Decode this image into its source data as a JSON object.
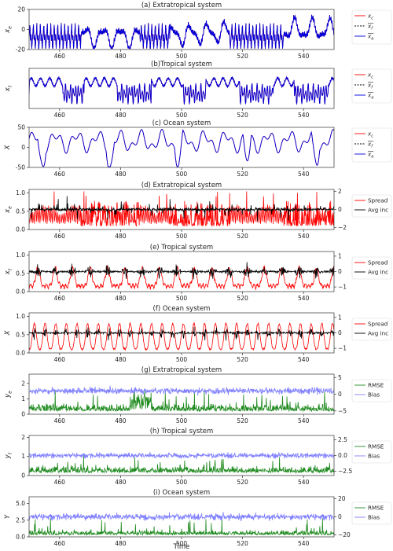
{
  "xlabel": "Time",
  "xlim": [
    450,
    550
  ],
  "xticks": [
    460,
    480,
    500,
    520,
    540
  ],
  "colors": {
    "red": "#ff0000",
    "blue": "#0000dd",
    "black": "#000000",
    "green": "#1f8a1f",
    "lightblue": "#7f7fff",
    "axis_blue": "#1f5fbf"
  },
  "chart_data": [
    {
      "type": "line",
      "title": "(a) Extratropical system",
      "ylabel_base": "x",
      "ylabel_sub": "e",
      "ylim": [
        -20,
        20
      ],
      "yticks": [
        -20,
        0,
        20
      ],
      "series": [
        {
          "name_base": "x",
          "name_sub": "c",
          "style": "solid",
          "color": "#ff0000"
        },
        {
          "name_base": "x",
          "name_sub": "f",
          "style": "dashed",
          "color": "#000000",
          "bar": true
        },
        {
          "name_base": "x",
          "name_sub": "a",
          "style": "solid",
          "color": "#0000dd",
          "bar": true
        }
      ],
      "gen": {
        "kind": "extra",
        "amp": 14,
        "bias": 0
      }
    },
    {
      "type": "line",
      "title": "(b)Tropical system",
      "ylabel_base": "x",
      "ylabel_sub": "t",
      "ylim": [
        -15,
        15
      ],
      "yticks": [],
      "series": [
        {
          "name_base": "x",
          "name_sub": "c",
          "style": "solid",
          "color": "#ff0000"
        },
        {
          "name_base": "x",
          "name_sub": "f",
          "style": "dashed",
          "color": "#000000",
          "bar": true
        },
        {
          "name_base": "x",
          "name_sub": "a",
          "style": "solid",
          "color": "#0000dd",
          "bar": true
        }
      ],
      "gen": {
        "kind": "tropic",
        "amp": 9,
        "bias": 0
      }
    },
    {
      "type": "line",
      "title": "(c) Ocean system",
      "ylabel_base": "X",
      "ylabel_sub": "",
      "ylim": [
        -50,
        50
      ],
      "yticks": [
        -50,
        0,
        50
      ],
      "series": [
        {
          "name_base": "x",
          "name_sub": "c",
          "style": "solid",
          "color": "#ff0000"
        },
        {
          "name_base": "x",
          "name_sub": "f",
          "style": "dashed",
          "color": "#000000",
          "bar": true
        },
        {
          "name_base": "x",
          "name_sub": "a",
          "style": "solid",
          "color": "#0000dd",
          "bar": true
        }
      ],
      "gen": {
        "kind": "ocean",
        "amp": 30,
        "bias": 8
      }
    },
    {
      "type": "line",
      "title": "(d) Extratropical system",
      "ylabel_base": "x",
      "ylabel_sub": "e",
      "ylim": [
        0,
        1.1
      ],
      "yticks": [
        0.0,
        0.5,
        1.0
      ],
      "tick_color": "#ff0000",
      "y2lim": [
        -2.2,
        2.2
      ],
      "y2ticks": [
        -2,
        0,
        2
      ],
      "series": [
        {
          "name": "Spread",
          "color": "#ff0000",
          "style": "solid"
        },
        {
          "name": "Avg inc",
          "color": "#000000",
          "style": "solid",
          "axis": 2
        }
      ],
      "gen": {
        "kind": "spread_extra"
      }
    },
    {
      "type": "line",
      "title": "(e) Tropical system",
      "ylabel_base": "x",
      "ylabel_sub": "t",
      "ylim": [
        0,
        1.1
      ],
      "yticks": [
        0.0,
        0.5,
        1.0
      ],
      "tick_color": "#ff0000",
      "y2lim": [
        -1.3,
        1.3
      ],
      "y2ticks": [
        -1,
        0,
        1
      ],
      "series": [
        {
          "name": "Spread",
          "color": "#ff0000",
          "style": "solid"
        },
        {
          "name": "Avg inc",
          "color": "#000000",
          "style": "solid",
          "axis": 2
        }
      ],
      "gen": {
        "kind": "spread_trop"
      }
    },
    {
      "type": "line",
      "title": "(f) Ocean system",
      "ylabel_base": "X",
      "ylabel_sub": "",
      "ylim": [
        0,
        1.1
      ],
      "yticks": [
        0.0,
        0.5,
        1.0
      ],
      "tick_color": "#ff0000",
      "y2lim": [
        -1.3,
        1.3
      ],
      "y2ticks": [
        -1,
        0,
        1
      ],
      "series": [
        {
          "name": "Spread",
          "color": "#ff0000",
          "style": "solid"
        },
        {
          "name": "Avg inc",
          "color": "#000000",
          "style": "solid",
          "axis": 2
        }
      ],
      "gen": {
        "kind": "spread_ocean"
      }
    },
    {
      "type": "line",
      "title": "(g) Extratropical system",
      "ylabel_base": "y",
      "ylabel_sub": "e",
      "ylim": [
        0,
        2.6
      ],
      "yticks": [
        0,
        1,
        2
      ],
      "tick_color": "#1f8a1f",
      "y2lim": [
        -6,
        6
      ],
      "y2ticks": [
        -5,
        0,
        5
      ],
      "tick2_color": "#1f5fbf",
      "series": [
        {
          "name": "RMSE",
          "color": "#1f8a1f",
          "style": "solid"
        },
        {
          "name": "Bias",
          "color": "#7f7fff",
          "style": "solid",
          "axis": 2
        }
      ],
      "gen": {
        "kind": "rmse_extra"
      }
    },
    {
      "type": "line",
      "title": "(h) Tropical system",
      "ylabel_base": "y",
      "ylabel_sub": "t",
      "ylim": [
        0,
        2.1
      ],
      "yticks": [
        0,
        1,
        2
      ],
      "tick_color": "#1f8a1f",
      "y2lim": [
        -3.2,
        3.2
      ],
      "y2ticks": [
        -2.5,
        0.0,
        2.5
      ],
      "tick2_color": "#1f5fbf",
      "series": [
        {
          "name": "RMSE",
          "color": "#1f8a1f",
          "style": "solid"
        },
        {
          "name": "Bias",
          "color": "#7f7fff",
          "style": "solid",
          "axis": 2
        }
      ],
      "gen": {
        "kind": "rmse_trop"
      }
    },
    {
      "type": "line",
      "title": "(i) Ocean system",
      "ylabel_base": "Y",
      "ylabel_sub": "",
      "ylim": [
        0,
        6
      ],
      "yticks": [
        0.0,
        2.5,
        5.0
      ],
      "tick_color": "#1f8a1f",
      "y2lim": [
        -22,
        22
      ],
      "y2ticks": [
        -20,
        0,
        20
      ],
      "tick2_color": "#1f5fbf",
      "series": [
        {
          "name": "RMSE",
          "color": "#1f8a1f",
          "style": "solid"
        },
        {
          "name": "Bias",
          "color": "#7f7fff",
          "style": "solid",
          "axis": 2
        }
      ],
      "gen": {
        "kind": "rmse_ocean"
      }
    }
  ]
}
